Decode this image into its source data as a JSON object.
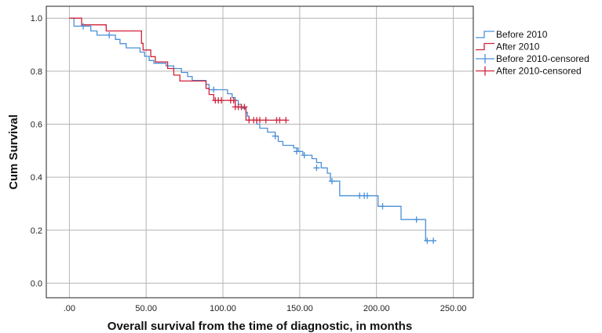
{
  "chart_data": {
    "type": "line",
    "step": true,
    "xlabel": "Overall survival from the time of diagnostic, in months",
    "ylabel": "Cum Survival",
    "xlim": [
      -15,
      263
    ],
    "ylim": [
      -0.055,
      1.045
    ],
    "x_ticks": [
      0,
      50,
      100,
      150,
      200,
      250
    ],
    "x_tick_labels": [
      ".00",
      "50.00",
      "100.00",
      "150.00",
      "200.00",
      "250.00"
    ],
    "y_ticks": [
      0,
      0.2,
      0.4,
      0.6,
      0.8,
      1.0
    ],
    "y_tick_labels": [
      "0.0",
      "0.2",
      "0.4",
      "0.6",
      "0.8",
      "1.0"
    ],
    "grid": true,
    "legend_position": "right",
    "legend": [
      "Before 2010",
      "After 2010",
      "Before 2010-censored",
      "After 2010-censored"
    ],
    "series": [
      {
        "name": "Before 2010",
        "color": "#4a90d9",
        "points": [
          [
            0,
            1.0
          ],
          [
            3,
            0.97
          ],
          [
            14,
            0.952
          ],
          [
            18,
            0.936
          ],
          [
            30,
            0.92
          ],
          [
            33,
            0.904
          ],
          [
            37,
            0.888
          ],
          [
            46,
            0.872
          ],
          [
            49,
            0.856
          ],
          [
            52,
            0.84
          ],
          [
            55,
            0.83
          ],
          [
            63,
            0.82
          ],
          [
            68,
            0.81
          ],
          [
            73,
            0.795
          ],
          [
            77,
            0.78
          ],
          [
            80,
            0.765
          ],
          [
            89,
            0.75
          ],
          [
            91,
            0.73
          ],
          [
            103,
            0.715
          ],
          [
            106,
            0.7
          ],
          [
            108,
            0.69
          ],
          [
            110,
            0.675
          ],
          [
            112,
            0.66
          ],
          [
            115,
            0.645
          ],
          [
            116,
            0.63
          ],
          [
            117,
            0.615
          ],
          [
            122,
            0.6
          ],
          [
            124,
            0.585
          ],
          [
            129,
            0.57
          ],
          [
            134,
            0.555
          ],
          [
            136,
            0.535
          ],
          [
            139,
            0.52
          ],
          [
            146,
            0.51
          ],
          [
            149,
            0.497
          ],
          [
            152,
            0.483
          ],
          [
            158,
            0.47
          ],
          [
            161,
            0.455
          ],
          [
            164,
            0.435
          ],
          [
            168,
            0.415
          ],
          [
            170,
            0.385
          ],
          [
            176,
            0.33
          ],
          [
            201,
            0.29
          ],
          [
            216,
            0.24
          ],
          [
            232,
            0.16
          ],
          [
            237,
            0.16
          ]
        ]
      },
      {
        "name": "After 2010",
        "color": "#d0223a",
        "points": [
          [
            0,
            1.0
          ],
          [
            8,
            0.975
          ],
          [
            24,
            0.952
          ],
          [
            47,
            0.905
          ],
          [
            48,
            0.88
          ],
          [
            53,
            0.855
          ],
          [
            56,
            0.835
          ],
          [
            64,
            0.81
          ],
          [
            68,
            0.785
          ],
          [
            72,
            0.763
          ],
          [
            89,
            0.735
          ],
          [
            91,
            0.712
          ],
          [
            94,
            0.69
          ],
          [
            108,
            0.665
          ],
          [
            115,
            0.615
          ],
          [
            141,
            0.615
          ]
        ]
      },
      {
        "name": "Before 2010-censored",
        "color": "#4a90d9",
        "censored": [
          [
            9,
            0.97
          ],
          [
            26,
            0.936
          ],
          [
            94,
            0.73
          ],
          [
            134,
            0.555
          ],
          [
            148,
            0.497
          ],
          [
            153,
            0.483
          ],
          [
            161,
            0.435
          ],
          [
            171,
            0.385
          ],
          [
            189,
            0.33
          ],
          [
            192,
            0.33
          ],
          [
            194,
            0.33
          ],
          [
            204,
            0.29
          ],
          [
            226,
            0.24
          ],
          [
            233,
            0.16
          ],
          [
            237,
            0.16
          ]
        ]
      },
      {
        "name": "After 2010-censored",
        "color": "#d0223a",
        "censored": [
          [
            95,
            0.69
          ],
          [
            97,
            0.69
          ],
          [
            99,
            0.69
          ],
          [
            105,
            0.69
          ],
          [
            107,
            0.69
          ],
          [
            108,
            0.665
          ],
          [
            110,
            0.665
          ],
          [
            112,
            0.665
          ],
          [
            114,
            0.665
          ],
          [
            117,
            0.615
          ],
          [
            120,
            0.615
          ],
          [
            122,
            0.615
          ],
          [
            124,
            0.615
          ],
          [
            128,
            0.615
          ],
          [
            135,
            0.615
          ],
          [
            137,
            0.615
          ],
          [
            141,
            0.615
          ]
        ]
      }
    ]
  }
}
